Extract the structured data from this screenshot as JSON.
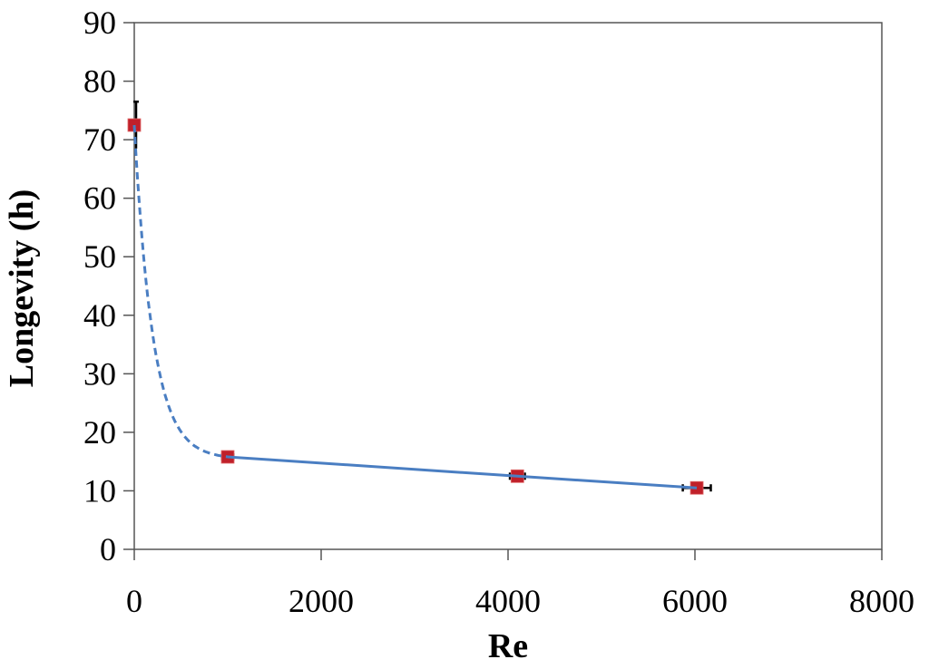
{
  "chart_data": {
    "type": "scatter",
    "title": "",
    "xlabel": "Re",
    "ylabel": "Longevity (h)",
    "xlim": [
      0,
      8000
    ],
    "ylim": [
      0,
      90
    ],
    "x_ticks": [
      0,
      2000,
      4000,
      6000,
      8000
    ],
    "y_ticks": [
      0,
      10,
      20,
      30,
      40,
      50,
      60,
      70,
      80,
      90
    ],
    "grid": false,
    "legend": null,
    "series": [
      {
        "name": "Longevity",
        "marker": "square",
        "color": "#C0202A",
        "points": [
          {
            "x": 0,
            "y": 72.5,
            "y_err": 4.0
          },
          {
            "x": 1000,
            "y": 15.8,
            "x_err": 60
          },
          {
            "x": 4100,
            "y": 12.5,
            "x_err": 80
          },
          {
            "x": 6020,
            "y": 10.5,
            "x_err": 150
          }
        ]
      }
    ],
    "trend_lines": [
      {
        "style": "dashed",
        "color": "#4A7EC2",
        "x_range": [
          0,
          1000
        ],
        "description": "exponential decay fit"
      },
      {
        "style": "solid",
        "color": "#4A7EC2",
        "x_range": [
          1000,
          6020
        ],
        "description": "linear fit"
      }
    ]
  }
}
